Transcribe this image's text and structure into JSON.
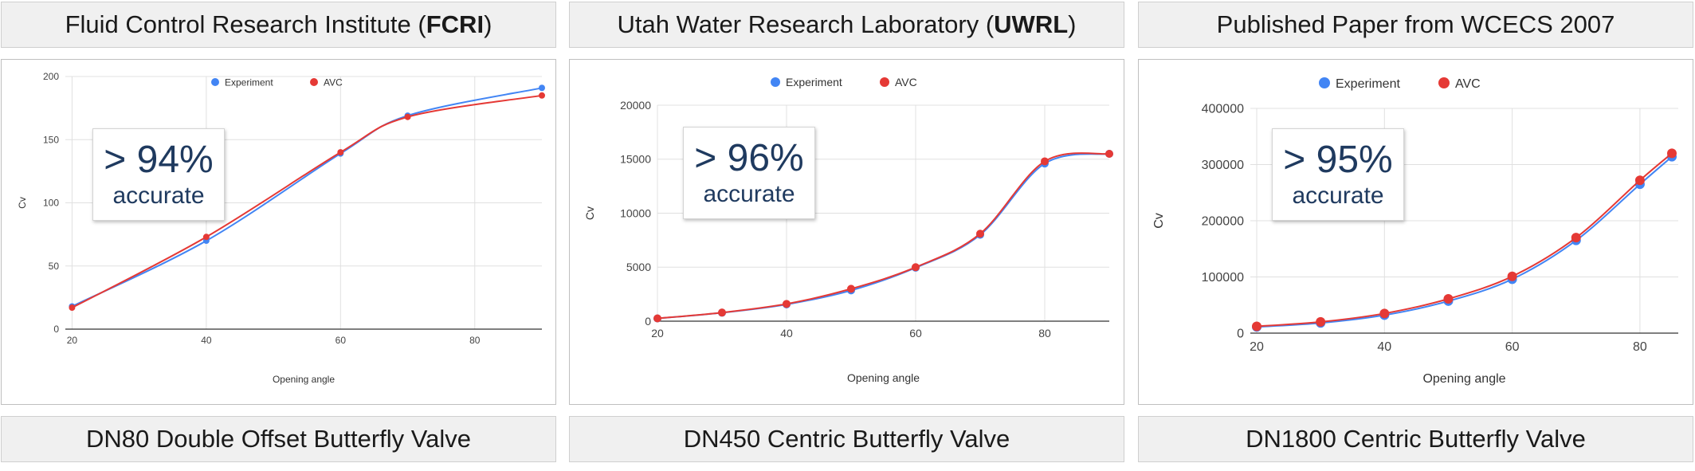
{
  "panels": [
    {
      "header_pre": "Fluid Control Research Institute (",
      "header_bold": "FCRI",
      "header_post": ")",
      "footer": "DN80 Double Offset Butterfly Valve",
      "accuracy_main": "> 94%",
      "accuracy_sub": "accurate"
    },
    {
      "header_pre": "Utah Water Research Laboratory (",
      "header_bold": "UWRL",
      "header_post": ")",
      "footer": "DN450 Centric Butterfly Valve",
      "accuracy_main": "> 96%",
      "accuracy_sub": "accurate"
    },
    {
      "header_pre": "Published Paper from WCECS 2007",
      "header_bold": "",
      "header_post": "",
      "footer": "DN1800 Centric Butterfly Valve",
      "accuracy_main": "> 95%",
      "accuracy_sub": "accurate"
    }
  ],
  "colors": {
    "experiment": "#4285f4",
    "avc": "#e53935",
    "grid": "#e0e0e0",
    "axis": "#333333"
  },
  "chart_data": [
    {
      "type": "line",
      "title": "",
      "xlabel": "Opening angle",
      "ylabel": "Cv",
      "xlim": [
        19,
        90
      ],
      "ylim": [
        0,
        200
      ],
      "x_ticks": [
        20,
        40,
        60,
        80
      ],
      "y_ticks": [
        0,
        50,
        100,
        150,
        200
      ],
      "x_tick_labels": [
        "20",
        "40",
        "60",
        "80"
      ],
      "y_tick_labels": [
        "0",
        "50",
        "100",
        "150",
        "200"
      ],
      "legend": [
        "Experiment",
        "AVC"
      ],
      "legend_position": "top",
      "series": [
        {
          "name": "Experiment",
          "x": [
            20,
            40,
            60,
            70,
            90
          ],
          "values": [
            18,
            70,
            139,
            169,
            191
          ]
        },
        {
          "name": "AVC",
          "x": [
            20,
            40,
            60,
            70,
            90
          ],
          "values": [
            17,
            73,
            140,
            168,
            185
          ]
        }
      ]
    },
    {
      "type": "line",
      "title": "",
      "xlabel": "Opening angle",
      "ylabel": "Cv",
      "xlim": [
        20,
        90
      ],
      "ylim": [
        0,
        20000
      ],
      "x_ticks": [
        20,
        40,
        60,
        80
      ],
      "y_ticks": [
        0,
        5000,
        10000,
        15000,
        20000
      ],
      "x_tick_labels": [
        "20",
        "40",
        "60",
        "80"
      ],
      "y_tick_labels": [
        "0",
        "5000",
        "10000",
        "15000",
        "20000"
      ],
      "legend": [
        "Experiment",
        "AVC"
      ],
      "legend_position": "top",
      "series": [
        {
          "name": "Experiment",
          "x": [
            20,
            30,
            40,
            50,
            60,
            70,
            80,
            90
          ],
          "values": [
            250,
            780,
            1550,
            2850,
            4950,
            8000,
            14600,
            15500
          ]
        },
        {
          "name": "AVC",
          "x": [
            20,
            30,
            40,
            50,
            60,
            70,
            80,
            90
          ],
          "values": [
            260,
            800,
            1600,
            3000,
            5000,
            8100,
            14800,
            15500
          ]
        }
      ]
    },
    {
      "type": "line",
      "title": "",
      "xlabel": "Opening angle",
      "ylabel": "Cv",
      "xlim": [
        19,
        86
      ],
      "ylim": [
        0,
        400000
      ],
      "x_ticks": [
        20,
        40,
        60,
        80
      ],
      "y_ticks": [
        0,
        100000,
        200000,
        300000,
        400000
      ],
      "x_tick_labels": [
        "20",
        "40",
        "60",
        "80"
      ],
      "y_tick_labels": [
        "0",
        "100000",
        "200000",
        "300000",
        "400000"
      ],
      "legend": [
        "Experiment",
        "AVC"
      ],
      "legend_position": "top",
      "series": [
        {
          "name": "Experiment",
          "x": [
            20,
            30,
            40,
            50,
            60,
            70,
            80,
            85
          ],
          "values": [
            11000,
            18000,
            32000,
            57000,
            96000,
            165000,
            265000,
            314000
          ]
        },
        {
          "name": "AVC",
          "x": [
            20,
            30,
            40,
            50,
            60,
            70,
            80,
            85
          ],
          "values": [
            12000,
            20000,
            35000,
            61000,
            101000,
            170000,
            272000,
            320000
          ]
        }
      ]
    }
  ]
}
